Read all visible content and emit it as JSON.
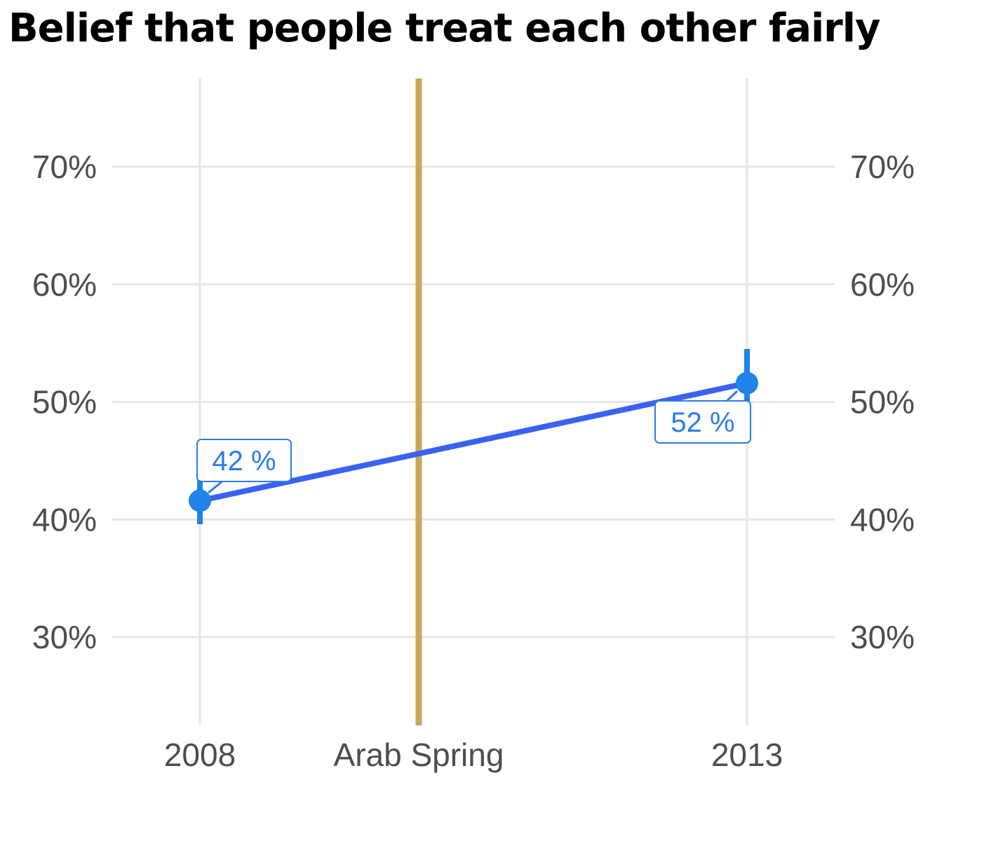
{
  "chart_data": {
    "type": "line",
    "title": "Belief that people treat each other fairly",
    "xlabel": "",
    "ylabel": "",
    "ylim": [
      0.23,
      0.775
    ],
    "yticks": [
      0.3,
      0.4,
      0.5,
      0.6,
      0.7
    ],
    "ytick_labels": [
      "30%",
      "40%",
      "50%",
      "60%",
      "70%"
    ],
    "secondary_y_axis": true,
    "x_categories": [
      "2008",
      "Arab Spring",
      "2013"
    ],
    "series": [
      {
        "points": [
          {
            "x": "2008",
            "y": 0.416,
            "ci_low": 0.396,
            "ci_high": 0.435,
            "label": "42 %"
          },
          {
            "x": "2013",
            "y": 0.516,
            "ci_low": 0.49,
            "ci_high": 0.545,
            "label": "52 %"
          }
        ]
      }
    ],
    "event_line": {
      "label": "Arab Spring"
    },
    "grid": true,
    "colors": {
      "series_line": "#3a62f0",
      "points": "#1f83e8",
      "label": "#2a7de8",
      "event_line": "#c9a75a",
      "grid": "#e6e6e6",
      "tick_text": "#4d4d4d"
    }
  }
}
